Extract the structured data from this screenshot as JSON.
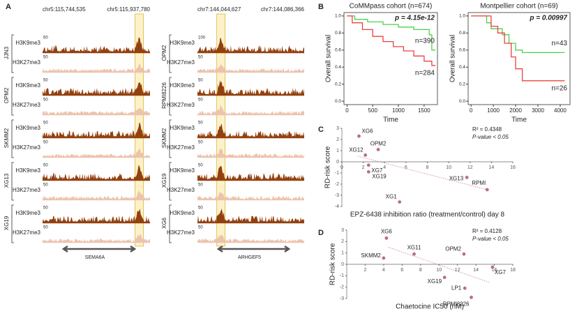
{
  "panel_a": {
    "letter": "A",
    "loci": [
      {
        "start": "chr5:115,744,535",
        "end": "chr5:115,937,780",
        "gene": "SEMA6A",
        "samples": [
          {
            "name": "JJN3",
            "tracks": [
              {
                "mark": "H3K9me3",
                "scale": 50
              },
              {
                "mark": "H3K27me3",
                "scale": 50
              }
            ]
          },
          {
            "name": "OPM2",
            "tracks": [
              {
                "mark": "H3K9me3",
                "scale": 50
              },
              {
                "mark": "H3K27me3",
                "scale": 50
              }
            ]
          },
          {
            "name": "SKMM2",
            "tracks": [
              {
                "mark": "H3K9me3",
                "scale": 50
              },
              {
                "mark": "H3K27me3",
                "scale": 50
              }
            ]
          },
          {
            "name": "XG13",
            "tracks": [
              {
                "mark": "H3K9me3",
                "scale": 50
              },
              {
                "mark": "H3K27me3",
                "scale": 50
              }
            ]
          },
          {
            "name": "XG19",
            "tracks": [
              {
                "mark": "H3K9me3",
                "scale": 50
              },
              {
                "mark": "H3K27me3",
                "scale": 50
              }
            ]
          }
        ]
      },
      {
        "start": "chr7:144,044,627",
        "end": "chr7:144,086,366",
        "gene": "ARHGEF5",
        "samples": [
          {
            "name": "OPM2",
            "tracks": [
              {
                "mark": "H3K9me3",
                "scale": 100
              },
              {
                "mark": "H3K27me3",
                "scale": 50
              }
            ]
          },
          {
            "name": "RPMI8226",
            "tracks": [
              {
                "mark": "H3K9me3",
                "scale": 50
              },
              {
                "mark": "H3K27me3",
                "scale": 50
              }
            ]
          },
          {
            "name": "SKMM2",
            "tracks": [
              {
                "mark": "H3K9me3",
                "scale": 50
              },
              {
                "mark": "H3K27me3",
                "scale": 50
              }
            ]
          },
          {
            "name": "XG19",
            "tracks": [
              {
                "mark": "H3K9me3",
                "scale": 50
              },
              {
                "mark": "H3K27me3",
                "scale": 50
              }
            ]
          },
          {
            "name": "XG6",
            "tracks": [
              {
                "mark": "H3K9me3",
                "scale": 50
              },
              {
                "mark": "H3K27me3",
                "scale": 50
              }
            ]
          }
        ]
      }
    ]
  },
  "panel_letters": [
    "B",
    "C",
    "D"
  ],
  "chart_data": [
    {
      "type": "line",
      "step": true,
      "title": "CoMMpass cohort (n=674)",
      "annotation": "p = 4.15e-12",
      "xlabel": "Time",
      "ylabel": "Overall survival",
      "xlim": [
        -60,
        1760
      ],
      "ylim": [
        -0.04,
        1.04
      ],
      "xticks": [
        0,
        500,
        1000,
        1500
      ],
      "yticks": [
        {
          "value": 0,
          "label": "0.0"
        },
        0.2,
        0.4,
        0.6,
        0.8,
        {
          "value": 1,
          "label": "1.0"
        }
      ],
      "series": [
        {
          "name": "n=390",
          "color": "#4cd04c",
          "x": [
            0,
            150,
            150,
            400,
            400,
            700,
            700,
            1000,
            1000,
            1300,
            1300,
            1600,
            1600,
            1650,
            1650,
            1720
          ],
          "values": [
            1,
            1,
            0.96,
            0.96,
            0.93,
            0.93,
            0.9,
            0.9,
            0.87,
            0.87,
            0.84,
            0.84,
            0.78,
            0.78,
            0.6,
            0.6
          ]
        },
        {
          "name": "n=284",
          "color": "#ee4040",
          "x": [
            0,
            100,
            100,
            300,
            300,
            500,
            500,
            700,
            700,
            900,
            900,
            1100,
            1100,
            1300,
            1300,
            1500,
            1500,
            1650,
            1650,
            1720
          ],
          "values": [
            1,
            1,
            0.92,
            0.92,
            0.84,
            0.84,
            0.76,
            0.76,
            0.7,
            0.7,
            0.64,
            0.64,
            0.59,
            0.59,
            0.53,
            0.53,
            0.47,
            0.47,
            0.42,
            0.42
          ]
        }
      ]
    },
    {
      "type": "line",
      "step": true,
      "title": "Montpellier cohort (n=69)",
      "annotation": "p = 0.00997",
      "xlabel": "Time",
      "ylabel": "Overall survival",
      "xlim": [
        -130,
        4440
      ],
      "ylim": [
        -0.04,
        1.04
      ],
      "xticks": [
        0,
        1000,
        2000,
        3000,
        4000
      ],
      "yticks": [
        {
          "value": 0,
          "label": "0.0"
        },
        0.2,
        0.4,
        0.6,
        0.8,
        {
          "value": 1,
          "label": "1.0"
        }
      ],
      "series": [
        {
          "name": "n=43",
          "color": "#4cd04c",
          "x": [
            0,
            700,
            700,
            900,
            900,
            1400,
            1400,
            1700,
            1700,
            2000,
            2000,
            2300,
            2300,
            4200
          ],
          "values": [
            1,
            1,
            0.92,
            0.92,
            0.85,
            0.85,
            0.78,
            0.78,
            0.68,
            0.68,
            0.6,
            0.6,
            0.57,
            0.57
          ]
        },
        {
          "name": "n=26",
          "color": "#ee4040",
          "x": [
            0,
            900,
            900,
            1200,
            1200,
            1500,
            1500,
            1800,
            1800,
            2000,
            2000,
            2300,
            2300,
            4200
          ],
          "values": [
            1,
            1,
            0.88,
            0.88,
            0.8,
            0.8,
            0.68,
            0.68,
            0.52,
            0.52,
            0.38,
            0.38,
            0.24,
            0.24
          ]
        }
      ]
    },
    {
      "type": "scatter",
      "xlabel": "EPZ-6438 inhibition ratio (treatment/control) day 8",
      "ylabel": "RD-risk score",
      "r2": "R² = 0.4348",
      "pvalue": "P-value < 0.05",
      "color": "#b87080",
      "xlim": [
        0,
        16
      ],
      "ylim": [
        -4,
        3
      ],
      "xticks": [
        0,
        2,
        4,
        6,
        8,
        10,
        12,
        14,
        16
      ],
      "yticks": [
        3,
        2,
        1,
        0,
        -1,
        -2,
        -3,
        -4
      ],
      "labels": [
        "XG6",
        "XG12",
        "OPM2",
        "XG7",
        "XG19",
        "XG13",
        "RPMI",
        "XG1"
      ],
      "x": [
        1.6,
        2.2,
        3.4,
        2.5,
        2.5,
        11.7,
        13.6,
        5.4
      ],
      "values": [
        2.3,
        0.6,
        1.1,
        -0.3,
        -0.9,
        -1.4,
        -2.5,
        -3.6
      ],
      "trendline": {
        "x": [
          1.5,
          13.6
        ],
        "values": [
          0.5,
          -2.5
        ]
      }
    },
    {
      "type": "scatter",
      "xlabel": "Chaetocine IC50 (nM)",
      "ylabel": "RD-risk score",
      "r2": "R² = 0.4128",
      "pvalue": "P-value < 0.05",
      "color": "#b87080",
      "xlim": [
        0,
        18
      ],
      "ylim": [
        -3,
        3
      ],
      "xticks": [
        2,
        4,
        6,
        8,
        10,
        12,
        14,
        16,
        18
      ],
      "yticks": [
        3,
        2,
        1,
        0,
        -1,
        -2,
        -3
      ],
      "labels": [
        "XG6",
        "SKMM2",
        "XG11",
        "OPM2",
        "XG7",
        "XG19",
        "LP1",
        "RPMI8226"
      ],
      "x": [
        4.3,
        4.0,
        7.3,
        12.7,
        15.8,
        10.6,
        12.8,
        13.5
      ],
      "values": [
        2.3,
        0.55,
        0.9,
        0.9,
        -0.25,
        -1.15,
        -2.1,
        -2.9
      ],
      "trendline": {
        "x": [
          4.5,
          15.5
        ],
        "values": [
          1.5,
          -1.6
        ]
      }
    }
  ]
}
